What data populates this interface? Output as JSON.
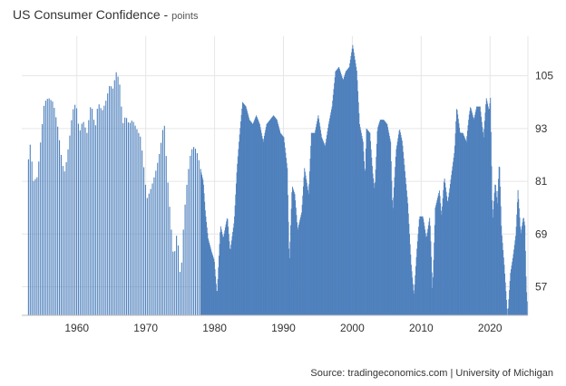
{
  "chart_data": {
    "type": "bar",
    "title": "US Consumer Confidence",
    "title_suffix": "points",
    "source": "Source: tradingeconomics.com | University of Michigan",
    "color": "#4f81bd",
    "grid": true,
    "xlim": [
      1952,
      2025.5
    ],
    "ylim": [
      50.5,
      114
    ],
    "x_ticks": [
      1960,
      1970,
      1980,
      1990,
      2000,
      2010,
      2020
    ],
    "y_ticks": [
      57,
      69,
      81,
      93,
      105
    ],
    "anchors": [
      [
        1952.9,
        86
      ],
      [
        1953.2,
        90
      ],
      [
        1953.6,
        81
      ],
      [
        1954.2,
        82
      ],
      [
        1954.6,
        89
      ],
      [
        1955.2,
        99
      ],
      [
        1955.8,
        100
      ],
      [
        1956.5,
        99
      ],
      [
        1957.2,
        93
      ],
      [
        1957.8,
        85
      ],
      [
        1958.2,
        83
      ],
      [
        1958.8,
        90
      ],
      [
        1959.3,
        97
      ],
      [
        1959.8,
        99
      ],
      [
        1960.3,
        92
      ],
      [
        1960.8,
        95
      ],
      [
        1961.4,
        92
      ],
      [
        1962.0,
        99
      ],
      [
        1962.6,
        93
      ],
      [
        1963.0,
        99
      ],
      [
        1963.6,
        97
      ],
      [
        1964.1,
        99
      ],
      [
        1964.7,
        103
      ],
      [
        1965.2,
        102
      ],
      [
        1965.6,
        106
      ],
      [
        1966.1,
        104
      ],
      [
        1966.6,
        94
      ],
      [
        1967.0,
        96
      ],
      [
        1967.5,
        94
      ],
      [
        1968.0,
        95
      ],
      [
        1968.6,
        93
      ],
      [
        1969.2,
        91
      ],
      [
        1969.6,
        85
      ],
      [
        1970.1,
        77
      ],
      [
        1970.6,
        79
      ],
      [
        1971.0,
        81
      ],
      [
        1971.5,
        84
      ],
      [
        1972.0,
        88
      ],
      [
        1972.6,
        95
      ],
      [
        1973.0,
        84
      ],
      [
        1973.5,
        73
      ],
      [
        1974.0,
        63
      ],
      [
        1974.5,
        70
      ],
      [
        1975.0,
        58
      ],
      [
        1975.5,
        73
      ],
      [
        1976.0,
        82
      ],
      [
        1976.5,
        88
      ],
      [
        1977.0,
        89
      ],
      [
        1977.5,
        87
      ],
      [
        1978.0,
        83
      ],
      [
        1978.3,
        81
      ],
      [
        1978.6,
        74
      ],
      [
        1979.0,
        68
      ],
      [
        1979.5,
        65
      ],
      [
        1979.9,
        63
      ],
      [
        1980.3,
        55
      ],
      [
        1980.8,
        71
      ],
      [
        1981.2,
        68
      ],
      [
        1981.8,
        73
      ],
      [
        1982.2,
        65
      ],
      [
        1982.8,
        72
      ],
      [
        1983.2,
        84
      ],
      [
        1983.6,
        92
      ],
      [
        1984.0,
        99
      ],
      [
        1984.5,
        98
      ],
      [
        1985.0,
        95
      ],
      [
        1985.5,
        94
      ],
      [
        1986.0,
        96
      ],
      [
        1986.5,
        94
      ],
      [
        1987.0,
        90
      ],
      [
        1987.5,
        94
      ],
      [
        1988.0,
        95
      ],
      [
        1988.5,
        96
      ],
      [
        1989.0,
        95
      ],
      [
        1989.5,
        92
      ],
      [
        1990.0,
        91
      ],
      [
        1990.5,
        84
      ],
      [
        1990.8,
        62
      ],
      [
        1991.2,
        80
      ],
      [
        1991.6,
        78
      ],
      [
        1992.0,
        70
      ],
      [
        1992.6,
        74
      ],
      [
        1993.0,
        84
      ],
      [
        1993.6,
        78
      ],
      [
        1994.0,
        92
      ],
      [
        1994.5,
        92
      ],
      [
        1995.0,
        96
      ],
      [
        1995.5,
        91
      ],
      [
        1996.0,
        89
      ],
      [
        1996.5,
        94
      ],
      [
        1997.0,
        98
      ],
      [
        1997.5,
        106
      ],
      [
        1998.0,
        107
      ],
      [
        1998.6,
        104
      ],
      [
        1999.0,
        106
      ],
      [
        1999.5,
        107
      ],
      [
        2000.0,
        112
      ],
      [
        2000.6,
        106
      ],
      [
        2001.0,
        94
      ],
      [
        2001.5,
        90
      ],
      [
        2001.8,
        82
      ],
      [
        2002.0,
        93
      ],
      [
        2002.5,
        92
      ],
      [
        2002.9,
        83
      ],
      [
        2003.2,
        79
      ],
      [
        2003.6,
        93
      ],
      [
        2004.0,
        95
      ],
      [
        2004.5,
        95
      ],
      [
        2005.0,
        94
      ],
      [
        2005.5,
        90
      ],
      [
        2005.8,
        74
      ],
      [
        2006.3,
        88
      ],
      [
        2006.8,
        93
      ],
      [
        2007.2,
        90
      ],
      [
        2007.6,
        83
      ],
      [
        2008.0,
        76
      ],
      [
        2008.5,
        62
      ],
      [
        2008.9,
        55
      ],
      [
        2009.3,
        65
      ],
      [
        2009.7,
        73
      ],
      [
        2010.2,
        73
      ],
      [
        2010.7,
        68
      ],
      [
        2011.2,
        73
      ],
      [
        2011.6,
        56
      ],
      [
        2012.0,
        75
      ],
      [
        2012.6,
        79
      ],
      [
        2012.9,
        73
      ],
      [
        2013.3,
        82
      ],
      [
        2013.8,
        76
      ],
      [
        2014.3,
        82
      ],
      [
        2014.8,
        88
      ],
      [
        2015.1,
        98
      ],
      [
        2015.6,
        92
      ],
      [
        2016.0,
        92
      ],
      [
        2016.5,
        90
      ],
      [
        2016.9,
        96
      ],
      [
        2017.1,
        98
      ],
      [
        2017.6,
        95
      ],
      [
        2018.0,
        98
      ],
      [
        2018.5,
        98
      ],
      [
        2019.0,
        91
      ],
      [
        2019.4,
        100
      ],
      [
        2019.8,
        97
      ],
      [
        2020.0,
        100
      ],
      [
        2020.3,
        72
      ],
      [
        2020.7,
        81
      ],
      [
        2021.0,
        76
      ],
      [
        2021.3,
        86
      ],
      [
        2021.6,
        70
      ],
      [
        2022.0,
        62
      ],
      [
        2022.5,
        50
      ],
      [
        2022.9,
        60
      ],
      [
        2023.3,
        64
      ],
      [
        2023.7,
        69
      ],
      [
        2024.0,
        79
      ],
      [
        2024.4,
        69
      ],
      [
        2024.8,
        73
      ],
      [
        2025.0,
        71
      ],
      [
        2025.2,
        57
      ],
      [
        2025.4,
        52
      ]
    ]
  }
}
